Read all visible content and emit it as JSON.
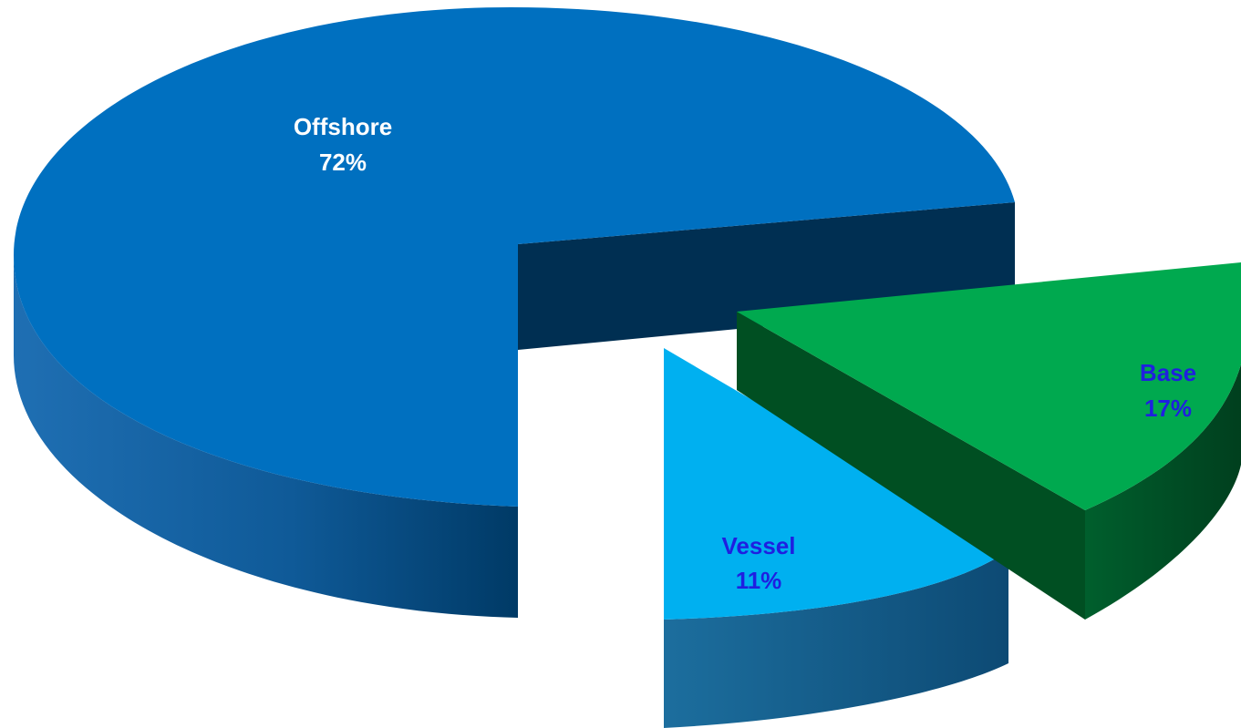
{
  "chart_data": {
    "type": "pie",
    "style": "3d-exploded",
    "title": "",
    "legend": "none",
    "slices": [
      {
        "label": "Offshore",
        "value": 72,
        "value_label": "72%",
        "color": "#0070c0",
        "side_color": "#005290",
        "label_color": "#ffffff"
      },
      {
        "label": "Vessel",
        "value": 11,
        "value_label": "11%",
        "color": "#00b0f0",
        "side_color": "#1a6a96",
        "label_color": "#1f1fe0"
      },
      {
        "label": "Base",
        "value": 17,
        "value_label": "17%",
        "color": "#00a94f",
        "side_color": "#005a2a",
        "label_color": "#1f1fe0"
      }
    ]
  }
}
